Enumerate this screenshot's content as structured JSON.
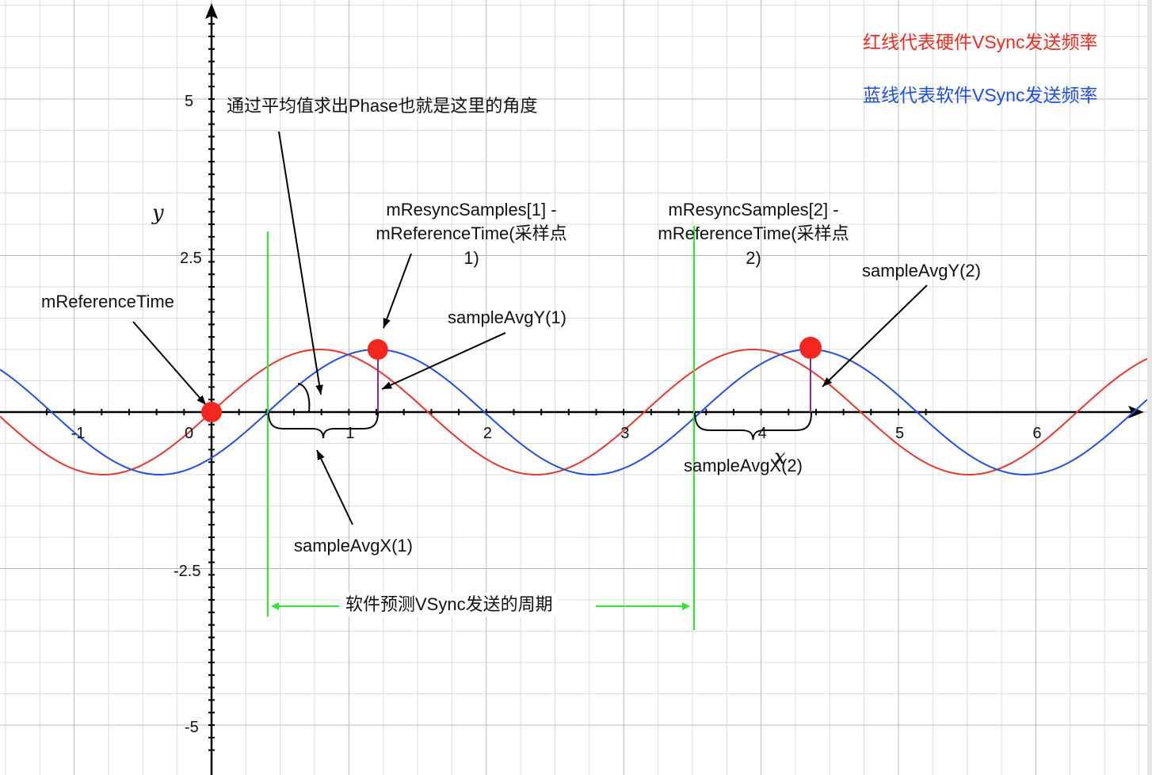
{
  "axes": {
    "x_label": "x",
    "y_label": "y",
    "x_ticks": [
      "-1",
      "0",
      "1",
      "2",
      "3",
      "4",
      "5",
      "6"
    ],
    "y_ticks": [
      "5",
      "2.5",
      "-2.5",
      "-5"
    ],
    "xlim": [
      -1.55,
      6.85
    ],
    "ylim": [
      -5.5,
      6.55
    ]
  },
  "curves": {
    "red": {
      "color": "#e8382d",
      "amplitude": 1,
      "period": 3.15,
      "phase_zero_x": 0
    },
    "blue": {
      "color": "#2150e6",
      "amplitude": 1,
      "period": 3.15,
      "phase_zero_x": 0.41
    }
  },
  "legend": {
    "red_text": "红线代表硬件VSync发送频率",
    "blue_text": "蓝线代表软件VSync发送频率",
    "red_color": "#ee2b22",
    "blue_color": "#1f4fe0"
  },
  "annotations": {
    "phase_note": "通过平均值求出Phase也就是这里的角度",
    "reference_time": "mReferenceTime",
    "sample1_line1": "mResyncSamples[1] -",
    "sample1_line2": "mReferenceTime(采样点",
    "sample1_line3": "1)",
    "sample2_line1": "mResyncSamples[2] -",
    "sample2_line2": "mReferenceTime(采样点",
    "sample2_line3": "2)",
    "avg_y1": "sampleAvgY(1)",
    "avg_y2": "sampleAvgY(2)",
    "avg_x1": "sampleAvgX(1)",
    "avg_x2": "sampleAvgX(2)",
    "period_note": "软件预测VSync发送的周期"
  },
  "points": {
    "reference": {
      "x": 0,
      "y": 0
    },
    "sample1": {
      "x": 1.21,
      "y": 1
    },
    "sample2": {
      "x": 4.36,
      "y": 1
    }
  },
  "colors": {
    "grid_major": "#b8b8b8",
    "grid_minor": "#dcdcdc",
    "point": "#f5261e",
    "green": "#2ee82e",
    "purple": "#8a2a8a"
  }
}
